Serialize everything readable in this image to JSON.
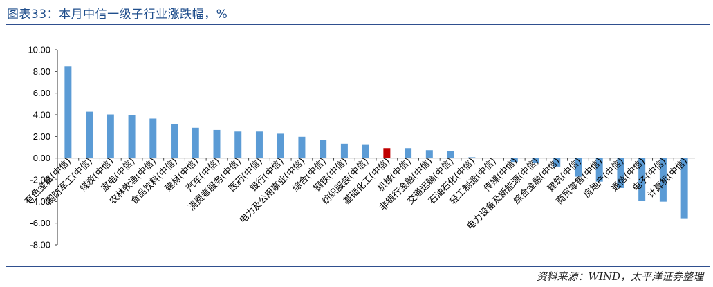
{
  "header": {
    "title": "图表33：本月中信一级子行业涨跌幅，%"
  },
  "footer": {
    "source": "资料来源：WIND，太平洋证券整理"
  },
  "colors": {
    "bar": "#5b9bd5",
    "highlight": "#c00000",
    "accent": "#2f4f8f"
  },
  "chart_data": {
    "type": "bar",
    "title": "",
    "xlabel": "",
    "ylabel": "",
    "ylim": [
      -8,
      10
    ],
    "yticks": [
      "10.00",
      "8.00",
      "6.00",
      "4.00",
      "2.00",
      "0.00",
      "-2.00",
      "-4.00",
      "-6.00",
      "-8.00"
    ],
    "grid": false,
    "legend": "none",
    "highlight_index": 15,
    "categories": [
      "有色金属(中信)",
      "国防军工(中信)",
      "煤炭(中信)",
      "家电(中信)",
      "农林牧渔(中信)",
      "食品饮料(中信)",
      "建材(中信)",
      "汽车(中信)",
      "消费者服务(中信)",
      "医药(中信)",
      "银行(中信)",
      "电力及公用事业(中信)",
      "综合(中信)",
      "钢铁(中信)",
      "纺织服装(中信)",
      "基础化工(中信)",
      "机械(中信)",
      "非银行金融(中信)",
      "交通运输(中信)",
      "石油石化(中信)",
      "轻工制造(中信)",
      "传媒(中信)",
      "电力设备及新能源(中信)",
      "综合金融(中信)",
      "建筑(中信)",
      "商贸零售(中信)",
      "房地产(中信)",
      "通信(中信)",
      "电子(中信)",
      "计算机(中信)"
    ],
    "values": [
      8.45,
      4.28,
      4.03,
      3.98,
      3.65,
      3.15,
      2.8,
      2.6,
      2.45,
      2.45,
      2.25,
      1.97,
      1.67,
      1.33,
      1.28,
      0.92,
      0.92,
      0.73,
      0.68,
      0.08,
      0.0,
      -0.35,
      -0.45,
      -0.78,
      -1.72,
      -2.17,
      -2.76,
      -3.92,
      -4.02,
      -5.55
    ]
  }
}
